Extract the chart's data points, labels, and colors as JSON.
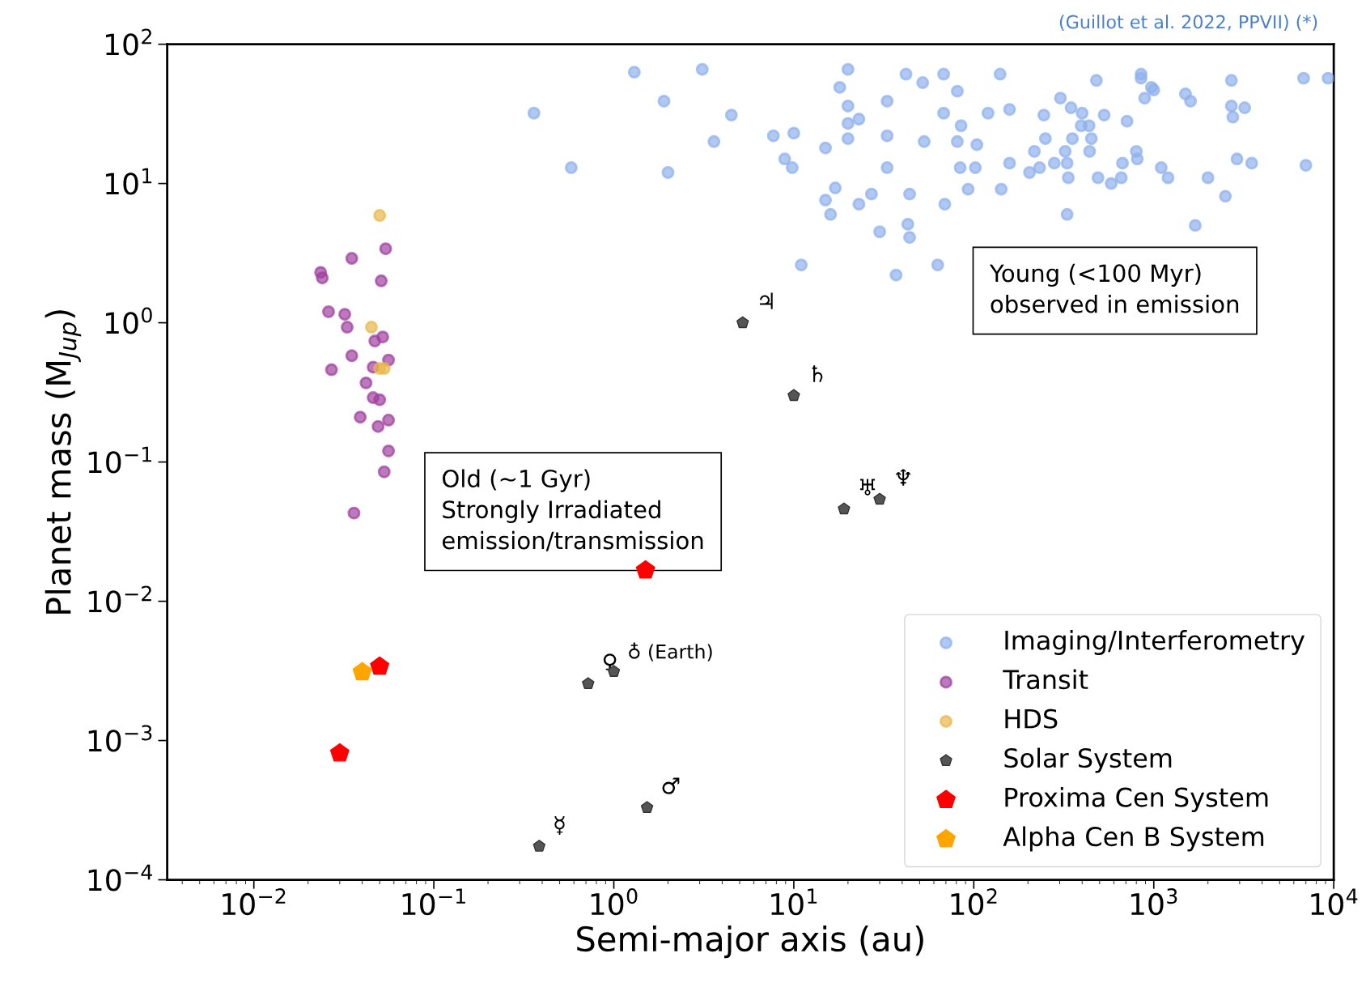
{
  "chart_data": {
    "type": "scatter",
    "xlabel": "Semi-major axis (au)",
    "ylabel": "Planet mass (M$_{Jup}$)",
    "log": "xy",
    "xlim": [
      0.0033,
      10000
    ],
    "ylim": [
      0.0001,
      100
    ],
    "xticks": [
      {
        "value": 0.01,
        "label": "10$^{−2}$"
      },
      {
        "value": 0.1,
        "label": "10$^{−1}$"
      },
      {
        "value": 1,
        "label": "10$^{0}$"
      },
      {
        "value": 10,
        "label": "10$^{1}$"
      },
      {
        "value": 100,
        "label": "10$^{2}$"
      },
      {
        "value": 1000,
        "label": "10$^{3}$"
      },
      {
        "value": 10000,
        "label": "10$^{4}$"
      }
    ],
    "yticks": [
      {
        "value": 0.0001,
        "label": "10$^{−4}$"
      },
      {
        "value": 0.001,
        "label": "10$^{−3}$"
      },
      {
        "value": 0.01,
        "label": "10$^{−2}$"
      },
      {
        "value": 0.1,
        "label": "10$^{−1}$"
      },
      {
        "value": 1,
        "label": "10$^{0}$"
      },
      {
        "value": 10,
        "label": "10$^{1}$"
      },
      {
        "value": 100,
        "label": "10$^{2}$"
      }
    ],
    "grid": false,
    "legend": "bottom right",
    "series": [
      {
        "name": "Imaging/Interferometry",
        "color": "#8fb0ec",
        "marker": "circle",
        "x": [
          0.36,
          0.58,
          1.3,
          1.9,
          2.0,
          3.1,
          3.6,
          4.5,
          7.7,
          8.9,
          9.8,
          10,
          11,
          15,
          15,
          16,
          17,
          18,
          20,
          20,
          20,
          20,
          23,
          23,
          27,
          30,
          33,
          33,
          33,
          37,
          42,
          44,
          43,
          44,
          52,
          53,
          63,
          68,
          68,
          69,
          81,
          81,
          85,
          84,
          93,
          102,
          104,
          120,
          140,
          142,
          158,
          158,
          204,
          217,
          232,
          245,
          250,
          280,
          303,
          322,
          330,
          335,
          330,
          347,
          353,
          400,
          395,
          437,
          450,
          440,
          480,
          490,
          530,
          580,
          660,
          670,
          710,
          800,
          810,
          850,
          850,
          970,
          890,
          1000,
          1100,
          1200,
          1500,
          1600,
          1700,
          2000,
          2500,
          2700,
          2700,
          2750,
          2900,
          3200,
          3500,
          6800,
          7000,
          9300
        ],
        "values": [
          32,
          13,
          63,
          39,
          12,
          66,
          20,
          31,
          22,
          15,
          13,
          23,
          2.6,
          18,
          7.6,
          6.0,
          9.3,
          49,
          36,
          66,
          21,
          27,
          29,
          7.1,
          8.4,
          4.5,
          39,
          22,
          13,
          2.2,
          61,
          8.4,
          5.1,
          4.1,
          53,
          20,
          2.6,
          61,
          32,
          7.1,
          46,
          20,
          26,
          13,
          9.1,
          13,
          19,
          32,
          61,
          9.1,
          34,
          14,
          12,
          17,
          13,
          31,
          21,
          14,
          41,
          17,
          14,
          11,
          6.0,
          35,
          21,
          32,
          26,
          26,
          21,
          17,
          55,
          11,
          31,
          10,
          11,
          14,
          28,
          17,
          15,
          61,
          57,
          49,
          41,
          47,
          13,
          11,
          44,
          39,
          5.0,
          11,
          8.1,
          55,
          36,
          30,
          15,
          35,
          14,
          57,
          13.5,
          57
        ]
      },
      {
        "name": "Transit",
        "color": "#a040a0",
        "marker": "circle",
        "x": [
          0.054,
          0.035,
          0.0235,
          0.024,
          0.051,
          0.026,
          0.032,
          0.033,
          0.052,
          0.047,
          0.035,
          0.056,
          0.027,
          0.046,
          0.042,
          0.046,
          0.05,
          0.039,
          0.056,
          0.049,
          0.056,
          0.053,
          0.036
        ],
        "values": [
          3.4,
          2.9,
          2.3,
          2.1,
          2.0,
          1.2,
          1.15,
          0.93,
          0.79,
          0.74,
          0.58,
          0.54,
          0.46,
          0.48,
          0.37,
          0.29,
          0.28,
          0.21,
          0.2,
          0.18,
          0.12,
          0.085,
          0.043
        ]
      },
      {
        "name": "HDS",
        "color": "#e8b84a",
        "marker": "circle",
        "x": [
          0.05,
          0.045,
          0.05,
          0.053
        ],
        "values": [
          5.9,
          0.93,
          0.47,
          0.47
        ]
      },
      {
        "name": "Solar System",
        "color": "#555555",
        "x": [
          0.385,
          0.72,
          1.0,
          1.53,
          5.2,
          10,
          19,
          30
        ],
        "values": [
          0.000174,
          0.00256,
          0.00313,
          0.00033,
          1.0,
          0.3,
          0.046,
          0.054
        ]
      },
      {
        "name": "Proxima Cen System",
        "color": "#ff0000",
        "x": [
          0.03,
          0.05,
          1.5
        ],
        "values": [
          0.00081,
          0.0034,
          0.0167
        ]
      },
      {
        "name": "Alpha Cen B System",
        "color": "#ffa500",
        "x": [
          0.04
        ],
        "values": [
          0.0031
        ]
      }
    ],
    "annotations": [
      {
        "text": "☿",
        "x": 0.385,
        "y": 0.000174
      },
      {
        "text": "♀",
        "x": 0.72,
        "y": 0.00256
      },
      {
        "text": "♁ (Earth)",
        "x": 1.0,
        "y": 0.00313
      },
      {
        "text": "♂",
        "x": 1.53,
        "y": 0.00033
      },
      {
        "text": "♃",
        "x": 5.2,
        "y": 1.0
      },
      {
        "text": "♄",
        "x": 10,
        "y": 0.3
      },
      {
        "text": "♅",
        "x": 19,
        "y": 0.046
      },
      {
        "text": "♆",
        "x": 30,
        "y": 0.054
      },
      "Young (<100 Myr)\nobserved in emission",
      "Old (~1 Gyr)\nStrongly Irradiated\nemission/transmission",
      "(Guillot et al. 2022, PPVII) (*)"
    ]
  }
}
